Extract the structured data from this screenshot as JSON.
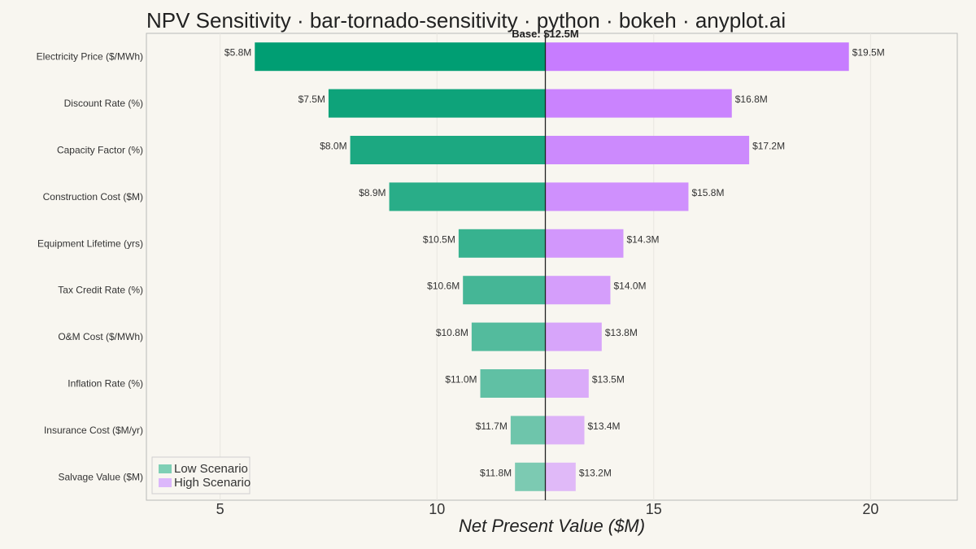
{
  "title": "NPV Sensitivity · bar-tornado-sensitivity · python · bokeh · anyplot.ai",
  "chart_data": {
    "type": "bar",
    "orientation": "horizontal-tornado",
    "base_value": 12.5,
    "base_label": "Base: $12.5M",
    "categories": [
      "Electricity Price ($/MWh)",
      "Discount Rate (%)",
      "Capacity Factor (%)",
      "Construction Cost ($M)",
      "Equipment Lifetime (yrs)",
      "Tax Credit Rate (%)",
      "O&M Cost ($/MWh)",
      "Inflation Rate (%)",
      "Insurance Cost ($M/yr)",
      "Salvage Value ($M)"
    ],
    "series": [
      {
        "name": "Low Scenario",
        "color": "#009e73",
        "values": [
          5.8,
          7.5,
          8.0,
          8.9,
          10.5,
          10.6,
          10.8,
          11.0,
          11.7,
          11.8
        ],
        "labels": [
          "$5.8M",
          "$7.5M",
          "$8.0M",
          "$8.9M",
          "$10.5M",
          "$10.6M",
          "$10.8M",
          "$11.0M",
          "$11.7M",
          "$11.8M"
        ]
      },
      {
        "name": "High Scenario",
        "color": "#c77cff",
        "values": [
          19.5,
          16.8,
          17.2,
          15.8,
          14.3,
          14.0,
          13.8,
          13.5,
          13.4,
          13.2
        ],
        "labels": [
          "$19.5M",
          "$16.8M",
          "$17.2M",
          "$15.8M",
          "$14.3M",
          "$14.0M",
          "$13.8M",
          "$13.5M",
          "$13.4M",
          "$13.2M"
        ]
      }
    ],
    "xlabel": "Net Present Value ($M)",
    "xlim": [
      3.3,
      22.0
    ],
    "xticks": [
      5,
      10,
      15,
      20
    ],
    "grid": true,
    "legend": "bottom-left"
  }
}
